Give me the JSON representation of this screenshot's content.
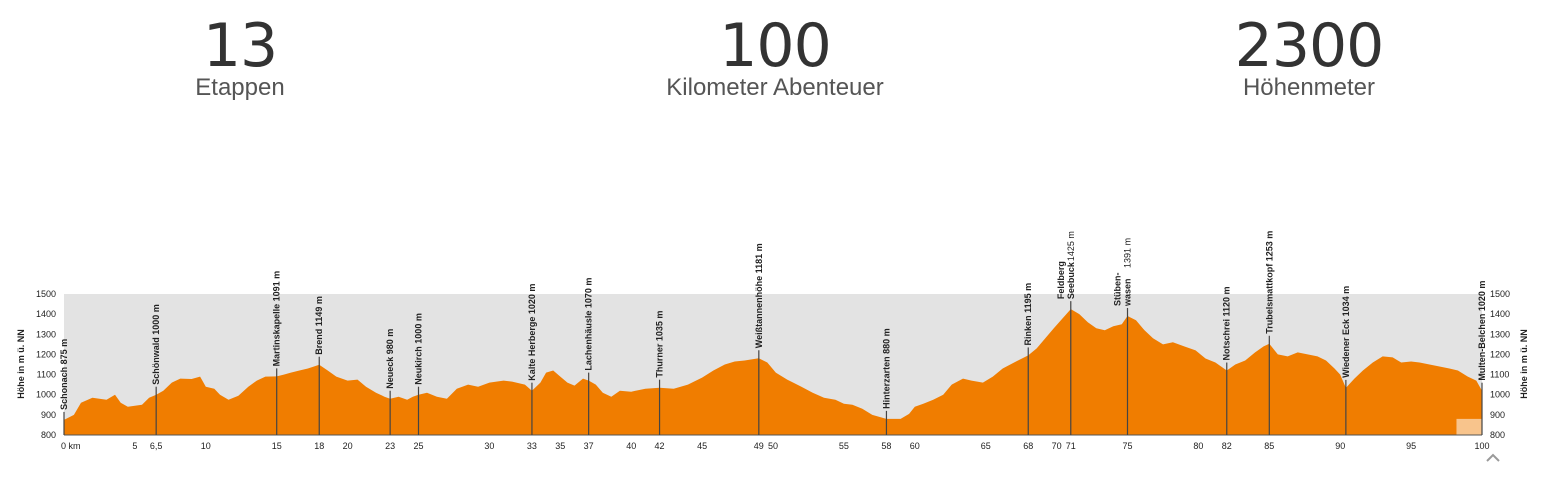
{
  "stats": [
    {
      "value": "13",
      "label": "Etappen"
    },
    {
      "value": "100",
      "label": "Kilometer Abenteuer"
    },
    {
      "value": "2300",
      "label": "Höhenmeter"
    }
  ],
  "colors": {
    "fill": "#f07d00",
    "plot_bg": "#e3e3e3",
    "marker": "#444444",
    "text": "#222222"
  },
  "chart_data": {
    "type": "area",
    "ylabel_left": "Höhe in m ü. NN",
    "ylabel_right": "Höhe in m ü. NN",
    "ylim": [
      800,
      1500
    ],
    "xlim": [
      0,
      100
    ],
    "yticks": [
      800,
      900,
      1000,
      1100,
      1200,
      1300,
      1400,
      1500
    ],
    "xticks": [
      "0 km",
      "5",
      "6,5",
      "10",
      "15",
      "18",
      "20",
      "23",
      "25",
      "30",
      "33",
      "35",
      "37",
      "40",
      "42",
      "45",
      "49",
      "50",
      "55",
      "58",
      "60",
      "65",
      "68",
      "70",
      "71",
      "75",
      "80",
      "82",
      "85",
      "90",
      "95",
      "100"
    ],
    "xtick_values": [
      0,
      5,
      6.5,
      10,
      15,
      18,
      20,
      23,
      25,
      30,
      33,
      35,
      37,
      40,
      42,
      45,
      49,
      50,
      55,
      58,
      60,
      65,
      68,
      70,
      71,
      75,
      80,
      82,
      85,
      90,
      95,
      100
    ],
    "grid": false,
    "profile": [
      [
        0,
        875
      ],
      [
        0.7,
        900
      ],
      [
        1.2,
        960
      ],
      [
        2,
        985
      ],
      [
        3,
        975
      ],
      [
        3.6,
        1000
      ],
      [
        4,
        960
      ],
      [
        4.5,
        940
      ],
      [
        5.5,
        950
      ],
      [
        6,
        985
      ],
      [
        6.5,
        1000
      ],
      [
        7,
        1020
      ],
      [
        7.6,
        1060
      ],
      [
        8.2,
        1080
      ],
      [
        9,
        1078
      ],
      [
        9.6,
        1090
      ],
      [
        10,
        1040
      ],
      [
        10.6,
        1030
      ],
      [
        11,
        1000
      ],
      [
        11.6,
        975
      ],
      [
        12.3,
        995
      ],
      [
        13,
        1040
      ],
      [
        13.6,
        1070
      ],
      [
        14.2,
        1090
      ],
      [
        15,
        1091
      ],
      [
        15.5,
        1100
      ],
      [
        16,
        1110
      ],
      [
        16.6,
        1120
      ],
      [
        17.2,
        1130
      ],
      [
        18,
        1149
      ],
      [
        18.6,
        1120
      ],
      [
        19.2,
        1090
      ],
      [
        20,
        1070
      ],
      [
        20.7,
        1075
      ],
      [
        21.3,
        1040
      ],
      [
        22,
        1010
      ],
      [
        22.6,
        990
      ],
      [
        23,
        980
      ],
      [
        23.6,
        990
      ],
      [
        24.2,
        975
      ],
      [
        24.6,
        990
      ],
      [
        25,
        1000
      ],
      [
        25.6,
        1010
      ],
      [
        26.3,
        990
      ],
      [
        27,
        980
      ],
      [
        27.7,
        1030
      ],
      [
        28.5,
        1050
      ],
      [
        29.2,
        1040
      ],
      [
        30,
        1060
      ],
      [
        31,
        1070
      ],
      [
        31.6,
        1065
      ],
      [
        32.5,
        1050
      ],
      [
        33,
        1020
      ],
      [
        33.6,
        1060
      ],
      [
        34,
        1110
      ],
      [
        34.5,
        1120
      ],
      [
        35,
        1090
      ],
      [
        35.5,
        1060
      ],
      [
        36,
        1045
      ],
      [
        36.6,
        1080
      ],
      [
        37,
        1070
      ],
      [
        37.5,
        1050
      ],
      [
        38,
        1010
      ],
      [
        38.6,
        990
      ],
      [
        39.2,
        1020
      ],
      [
        40,
        1015
      ],
      [
        41,
        1030
      ],
      [
        42,
        1035
      ],
      [
        43,
        1030
      ],
      [
        44,
        1050
      ],
      [
        45,
        1085
      ],
      [
        45.8,
        1120
      ],
      [
        46.6,
        1150
      ],
      [
        47.3,
        1165
      ],
      [
        48,
        1170
      ],
      [
        49,
        1181
      ],
      [
        49.6,
        1160
      ],
      [
        50.2,
        1110
      ],
      [
        51,
        1075
      ],
      [
        52,
        1040
      ],
      [
        52.8,
        1010
      ],
      [
        53.6,
        985
      ],
      [
        54.4,
        975
      ],
      [
        55,
        955
      ],
      [
        55.6,
        950
      ],
      [
        56.3,
        930
      ],
      [
        57,
        900
      ],
      [
        58,
        880
      ],
      [
        59,
        880
      ],
      [
        59.6,
        905
      ],
      [
        60,
        940
      ],
      [
        60.6,
        955
      ],
      [
        61.3,
        975
      ],
      [
        62,
        1000
      ],
      [
        62.6,
        1050
      ],
      [
        63.4,
        1080
      ],
      [
        64,
        1070
      ],
      [
        64.8,
        1060
      ],
      [
        65.5,
        1090
      ],
      [
        66.2,
        1130
      ],
      [
        67,
        1160
      ],
      [
        68,
        1195
      ],
      [
        68.6,
        1230
      ],
      [
        69.2,
        1280
      ],
      [
        69.8,
        1330
      ],
      [
        70.3,
        1370
      ],
      [
        71,
        1425
      ],
      [
        71.6,
        1400
      ],
      [
        72.2,
        1360
      ],
      [
        72.8,
        1330
      ],
      [
        73.4,
        1320
      ],
      [
        74,
        1340
      ],
      [
        74.6,
        1350
      ],
      [
        75,
        1391
      ],
      [
        75.6,
        1370
      ],
      [
        76.2,
        1320
      ],
      [
        76.8,
        1280
      ],
      [
        77.5,
        1250
      ],
      [
        78.2,
        1260
      ],
      [
        79,
        1240
      ],
      [
        79.8,
        1220
      ],
      [
        80.5,
        1180
      ],
      [
        81.2,
        1160
      ],
      [
        82,
        1120
      ],
      [
        82.6,
        1150
      ],
      [
        83.3,
        1170
      ],
      [
        84,
        1210
      ],
      [
        84.6,
        1240
      ],
      [
        85,
        1253
      ],
      [
        85.6,
        1200
      ],
      [
        86.3,
        1190
      ],
      [
        87,
        1210
      ],
      [
        87.7,
        1200
      ],
      [
        88.4,
        1190
      ],
      [
        89,
        1170
      ],
      [
        89.6,
        1130
      ],
      [
        90,
        1100
      ],
      [
        90.4,
        1034
      ],
      [
        91,
        1080
      ],
      [
        91.6,
        1120
      ],
      [
        92.3,
        1160
      ],
      [
        93,
        1190
      ],
      [
        93.7,
        1185
      ],
      [
        94.3,
        1160
      ],
      [
        95,
        1165
      ],
      [
        95.6,
        1160
      ],
      [
        96.3,
        1150
      ],
      [
        97,
        1140
      ],
      [
        97.7,
        1130
      ],
      [
        98.3,
        1120
      ],
      [
        99,
        1090
      ],
      [
        99.6,
        1070
      ],
      [
        100,
        1020
      ]
    ],
    "waypoints": [
      {
        "km": 0,
        "label": "Schonach 875 m",
        "elev": 875
      },
      {
        "km": 6.5,
        "label": "Schönwald 1000 m",
        "elev": 1000
      },
      {
        "km": 15,
        "label": "Martinskapelle 1091 m",
        "elev": 1091
      },
      {
        "km": 18,
        "label": "Brend 1149 m",
        "elev": 1149
      },
      {
        "km": 23,
        "label": "Neueck 980 m",
        "elev": 980
      },
      {
        "km": 25,
        "label": "Neukirch 1000 m",
        "elev": 1000
      },
      {
        "km": 33,
        "label": "Kalte Herberge 1020 m",
        "elev": 1020
      },
      {
        "km": 37,
        "label": "Lachenhäusle 1070 m",
        "elev": 1070
      },
      {
        "km": 42,
        "label": "Thurner 1035 m",
        "elev": 1035
      },
      {
        "km": 49,
        "label": "Weißtannenhöhe 1181 m",
        "elev": 1181
      },
      {
        "km": 58,
        "label": "Hinterzarten 880 m",
        "elev": 880
      },
      {
        "km": 68,
        "label": "Rinken 1195 m",
        "elev": 1195
      },
      {
        "km": 71,
        "label": "Feldberg Seebuck 1425 m",
        "elev": 1425,
        "lines": [
          "Feldberg",
          "Seebuck"
        ],
        "elev_label": "1425 m"
      },
      {
        "km": 75,
        "label": "Stübenwasen 1391 m",
        "elev": 1391,
        "lines": [
          "Stüben-",
          "wasen"
        ],
        "elev_label": "1391 m"
      },
      {
        "km": 82,
        "label": "Notschrei 1120 m",
        "elev": 1120
      },
      {
        "km": 85,
        "label": "Trubelsmattkopf 1253 m",
        "elev": 1253
      },
      {
        "km": 90.4,
        "label": "Wiedener Eck 1034 m",
        "elev": 1034
      },
      {
        "km": 100,
        "label": "Multen-Belchen 1020 m",
        "elev": 1020
      }
    ]
  }
}
